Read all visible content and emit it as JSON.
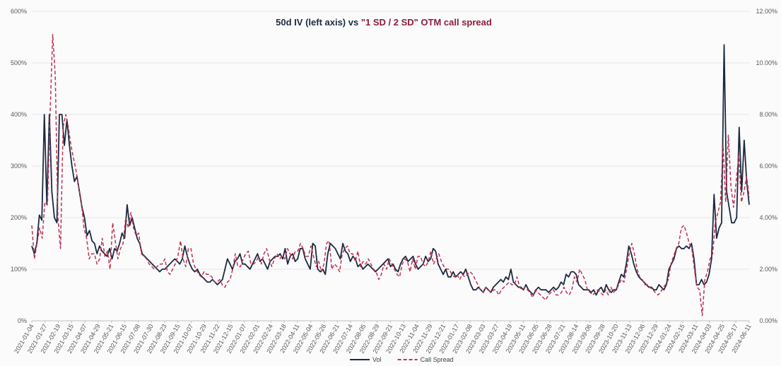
{
  "chart_data": {
    "type": "line",
    "title": {
      "part1": "50d IV (left axis) vs ",
      "part2": "\"1 SD / 2 SD\" OTM call spread",
      "color1": "#1b2a41",
      "color2": "#8b1d3a"
    },
    "left_axis": {
      "min": 0,
      "max": 600,
      "step": 100,
      "tick_labels": [
        "0%",
        "100%",
        "200%",
        "300%",
        "400%",
        "500%",
        "600%"
      ]
    },
    "right_axis": {
      "min": 0,
      "max": 12,
      "step": 2,
      "tick_labels": [
        "0.00%",
        "2.00%",
        "4.00%",
        "6.00%",
        "8.00%",
        "10.00%",
        "12.00%"
      ]
    },
    "x_tick_labels": [
      "2021-01-04",
      "2021-01-27",
      "2021-02-19",
      "2021-03-15",
      "2021-04-07",
      "2021-04-29",
      "2021-05-21",
      "2021-06-15",
      "2021-07-08",
      "2021-07-30",
      "2021-08-23",
      "2021-09-15",
      "2021-10-07",
      "2021-10-29",
      "2021-11-22",
      "2021-12-15",
      "2022-01-07",
      "2022-02-01",
      "2022-02-24",
      "2022-03-18",
      "2022-04-11",
      "2022-05-04",
      "2022-05-26",
      "2022-06-21",
      "2022-07-14",
      "2022-08-05",
      "2022-08-29",
      "2022-09-21",
      "2022-10-13",
      "2022-11-04",
      "2022-11-29",
      "2022-12-21",
      "2023-01-17",
      "2023-02-08",
      "2023-03-03",
      "2023-03-27",
      "2023-04-19",
      "2023-05-11",
      "2023-06-05",
      "2023-06-28",
      "2023-07-21",
      "2023-08-14",
      "2023-09-06",
      "2023-09-28",
      "2023-10-20",
      "2023-11-13",
      "2023-12-06",
      "2023-12-29",
      "2024-01-24",
      "2024-02-15",
      "2024-03-11",
      "2024-04-03",
      "2024-04-25",
      "2024-05-17",
      "2024-06-11"
    ],
    "grid": "horizontal",
    "legend_position": "bottom",
    "series": [
      {
        "name": "Vol",
        "axis": "left",
        "color": "#1b2a41",
        "style": "solid",
        "values": [
          145,
          130,
          150,
          205,
          195,
          400,
          225,
          400,
          250,
          200,
          190,
          400,
          400,
          340,
          390,
          340,
          300,
          270,
          280,
          250,
          220,
          200,
          165,
          175,
          155,
          150,
          130,
          145,
          135,
          130,
          125,
          140,
          120,
          140,
          135,
          150,
          170,
          160,
          225,
          185,
          200,
          180,
          160,
          150,
          130,
          125,
          120,
          115,
          110,
          105,
          100,
          95,
          100,
          100,
          105,
          110,
          115,
          120,
          115,
          110,
          120,
          145,
          125,
          110,
          100,
          95,
          100,
          90,
          85,
          80,
          75,
          75,
          80,
          75,
          70,
          75,
          80,
          100,
          120,
          110,
          100,
          115,
          120,
          130,
          110,
          110,
          105,
          100,
          110,
          120,
          130,
          115,
          120,
          110,
          100,
          115,
          120,
          125,
          125,
          130,
          120,
          140,
          110,
          125,
          130,
          115,
          120,
          140,
          140,
          120,
          110,
          100,
          150,
          145,
          100,
          95,
          100,
          90,
          130,
          150,
          145,
          140,
          130,
          120,
          150,
          135,
          130,
          115,
          125,
          120,
          105,
          110,
          100,
          105,
          110,
          105,
          100,
          95,
          100,
          105,
          110,
          115,
          120,
          105,
          110,
          100,
          95,
          110,
          120,
          125,
          115,
          120,
          125,
          110,
          100,
          105,
          110,
          125,
          115,
          120,
          140,
          135,
          110,
          100,
          90,
          100,
          85,
          85,
          95,
          85,
          90,
          95,
          90,
          100,
          85,
          70,
          60,
          60,
          65,
          60,
          55,
          65,
          60,
          55,
          65,
          70,
          75,
          80,
          75,
          85,
          80,
          100,
          75,
          70,
          65,
          65,
          60,
          70,
          60,
          55,
          50,
          60,
          65,
          60,
          60,
          60,
          55,
          60,
          65,
          60,
          65,
          75,
          70,
          90,
          85,
          95,
          95,
          90,
          70,
          65,
          60,
          60,
          60,
          55,
          60,
          50,
          60,
          65,
          55,
          70,
          60,
          55,
          60,
          60,
          75,
          90,
          85,
          110,
          145,
          130,
          110,
          95,
          85,
          80,
          75,
          70,
          65,
          65,
          60,
          60,
          70,
          65,
          60,
          70,
          100,
          110,
          120,
          140,
          145,
          140,
          140,
          145,
          140,
          150,
          120,
          70,
          70,
          80,
          70,
          75,
          90,
          120,
          245,
          160,
          180,
          190,
          535,
          250,
          220,
          190,
          190,
          200,
          375,
          250,
          350,
          270,
          225
        ]
      },
      {
        "name": "Call Spread",
        "axis": "right",
        "color": "#c0304f",
        "style": "dashed",
        "values": [
          3.7,
          2.4,
          3.0,
          3.6,
          3.2,
          4.6,
          4.5,
          8.0,
          11.1,
          9.5,
          4.0,
          2.8,
          7.5,
          8.0,
          7.5,
          6.8,
          6.3,
          5.8,
          5.2,
          4.6,
          3.6,
          3.2,
          2.4,
          2.6,
          2.6,
          2.2,
          2.4,
          3.2,
          2.5,
          2.7,
          2.0,
          3.8,
          3.1,
          2.4,
          2.8,
          3.0,
          4.0,
          3.6,
          4.2,
          3.6,
          3.3,
          3.4,
          2.6,
          2.5,
          2.4,
          2.2,
          2.1,
          2.0,
          2.1,
          2.2,
          2.2,
          2.4,
          1.9,
          1.8,
          2.0,
          2.2,
          2.5,
          3.1,
          2.4,
          2.1,
          2.8,
          2.8,
          2.2,
          2.0,
          1.8,
          1.7,
          1.9,
          1.8,
          1.8,
          1.7,
          1.5,
          1.5,
          1.6,
          1.4,
          1.3,
          1.5,
          1.6,
          2.0,
          2.6,
          2.1,
          2.1,
          2.4,
          2.6,
          2.7,
          2.2,
          2.2,
          2.3,
          2.5,
          2.2,
          2.6,
          2.8,
          2.4,
          2.1,
          2.4,
          2.6,
          2.4,
          2.5,
          2.4,
          2.8,
          2.6,
          2.4,
          2.7,
          2.7,
          3.0,
          2.8,
          2.5,
          2.5,
          2.9,
          2.5,
          2.1,
          2.3,
          1.9,
          2.2,
          3.0,
          3.1,
          2.0,
          2.2,
          2.1,
          1.9,
          2.6,
          2.8,
          2.9,
          2.6,
          2.6,
          2.3,
          2.7,
          2.1,
          2.3,
          2.2,
          2.4,
          2.2,
          2.0,
          1.9,
          1.6,
          1.8,
          2.2,
          2.0,
          2.4,
          2.2,
          2.0,
          1.8,
          1.7,
          2.2,
          2.4,
          2.3,
          1.9,
          2.4,
          2.0,
          2.5,
          2.5,
          2.2,
          2.1,
          2.3,
          2.7,
          2.2,
          2.4,
          2.6,
          2.3,
          2.1,
          2.0,
          2.0,
          1.8,
          1.7,
          1.8,
          1.6,
          1.8,
          1.7,
          1.8,
          1.9,
          1.8,
          1.6,
          1.4,
          1.2,
          1.1,
          1.3,
          1.2,
          1.1,
          1.2,
          1.2,
          1.0,
          1.2,
          1.3,
          1.4,
          1.5,
          1.4,
          1.4,
          1.7,
          1.3,
          1.2,
          1.3,
          1.2,
          1.1,
          0.9,
          1.2,
          1.1,
          1.0,
          0.9,
          0.8,
          1.0,
          1.1,
          1.2,
          1.0,
          1.0,
          1.1,
          1.3,
          1.1,
          1.0,
          1.2,
          1.7,
          1.5,
          2.0,
          1.8,
          1.6,
          1.2,
          1.1,
          1.0,
          1.1,
          1.2,
          1.1,
          1.0,
          1.2,
          1.0,
          1.3,
          1.1,
          1.2,
          1.4,
          1.6,
          1.5,
          2.0,
          2.6,
          3.0,
          2.6,
          2.0,
          1.7,
          1.6,
          1.4,
          1.4,
          1.3,
          1.2,
          1.1,
          1.0,
          1.1,
          1.3,
          1.4,
          1.6,
          2.2,
          2.5,
          2.8,
          3.0,
          3.6,
          3.7,
          3.4,
          3.0,
          2.8,
          2.0,
          1.3,
          1.2,
          0.2,
          1.6,
          1.9,
          2.4,
          2.6,
          3.8,
          4.2,
          4.6,
          6.8,
          4.6,
          7.2,
          5.2,
          4.4,
          5.4,
          6.4,
          4.6,
          5.0,
          5.6,
          4.8
        ]
      }
    ]
  }
}
